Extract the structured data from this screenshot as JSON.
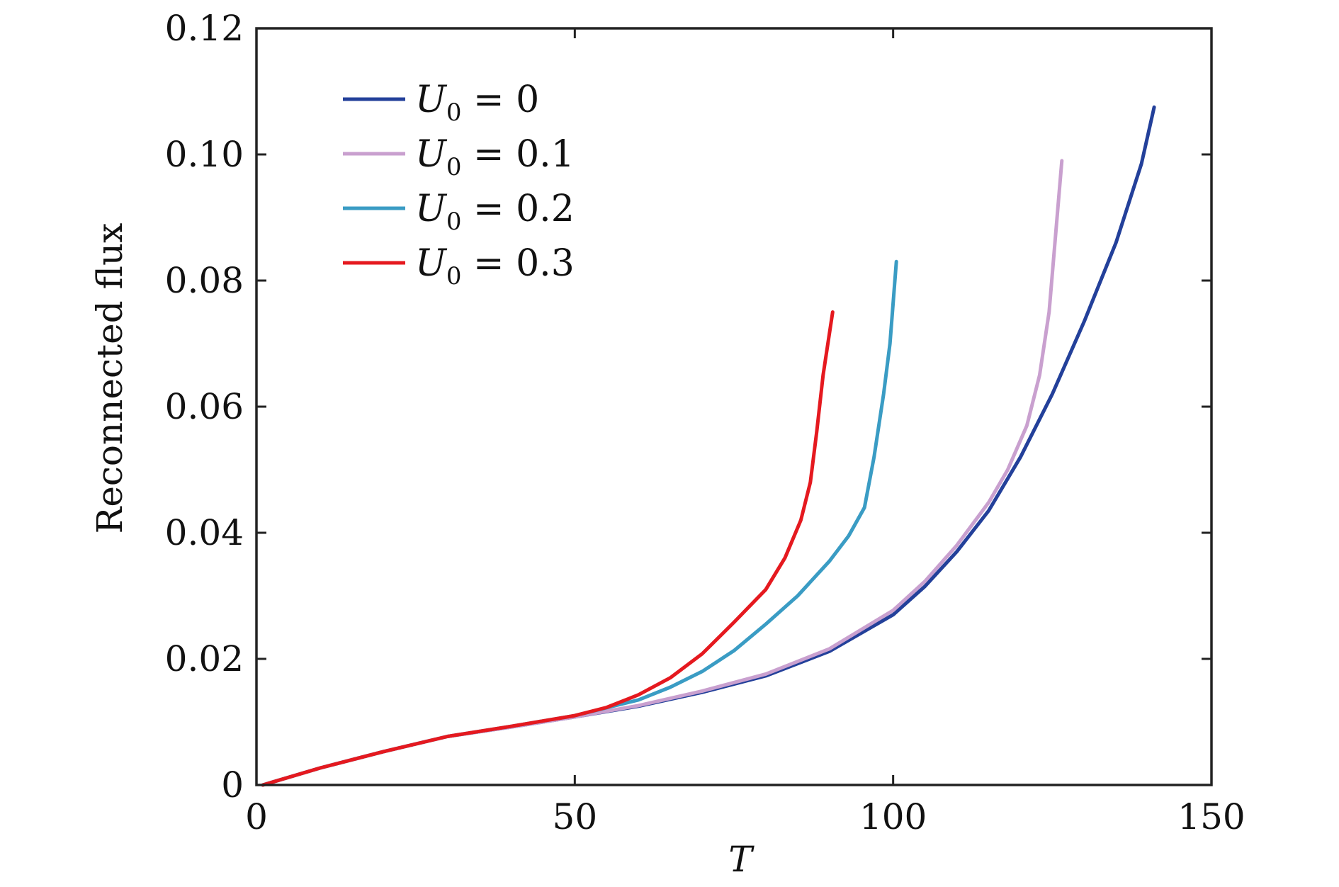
{
  "chart_data": {
    "type": "line",
    "title": "",
    "xlabel": "T",
    "ylabel": "Reconnected flux",
    "xlim": [
      0,
      150
    ],
    "ylim": [
      0,
      0.12
    ],
    "x_ticks": [
      0,
      50,
      100,
      150
    ],
    "x_tick_labels": [
      "0",
      "50",
      "100",
      "150"
    ],
    "y_ticks": [
      0,
      0.02,
      0.04,
      0.06,
      0.08,
      0.1,
      0.12
    ],
    "y_tick_labels": [
      "0",
      "0.02",
      "0.04",
      "0.06",
      "0.08",
      "0.10",
      "0.12"
    ],
    "grid": false,
    "legend_position": "top-left",
    "series": [
      {
        "name": "U0 = 0",
        "legend_symbol": "U",
        "legend_subscript": "0",
        "legend_rest": " = 0",
        "color": "#23409a",
        "points": [
          [
            1,
            0
          ],
          [
            10,
            0.0027
          ],
          [
            20,
            0.0053
          ],
          [
            30,
            0.0077
          ],
          [
            40,
            0.0092
          ],
          [
            50,
            0.0108
          ],
          [
            60,
            0.0125
          ],
          [
            70,
            0.0147
          ],
          [
            80,
            0.0173
          ],
          [
            90,
            0.0212
          ],
          [
            100,
            0.027
          ],
          [
            105,
            0.0315
          ],
          [
            110,
            0.037
          ],
          [
            115,
            0.0435
          ],
          [
            120,
            0.052
          ],
          [
            125,
            0.062
          ],
          [
            130,
            0.0735
          ],
          [
            135,
            0.086
          ],
          [
            139,
            0.0985
          ],
          [
            141,
            0.1075
          ]
        ]
      },
      {
        "name": "U0 = 0.1",
        "legend_symbol": "U",
        "legend_subscript": "0",
        "legend_rest": " = 0.1",
        "color": "#c9a0cf",
        "points": [
          [
            1,
            0
          ],
          [
            10,
            0.0027
          ],
          [
            20,
            0.0053
          ],
          [
            30,
            0.0077
          ],
          [
            40,
            0.0092
          ],
          [
            50,
            0.0108
          ],
          [
            60,
            0.0126
          ],
          [
            70,
            0.0149
          ],
          [
            80,
            0.0176
          ],
          [
            90,
            0.0216
          ],
          [
            100,
            0.0277
          ],
          [
            105,
            0.0323
          ],
          [
            110,
            0.038
          ],
          [
            115,
            0.0448
          ],
          [
            118,
            0.05
          ],
          [
            121,
            0.057
          ],
          [
            123,
            0.065
          ],
          [
            124.5,
            0.075
          ],
          [
            125.5,
            0.087
          ],
          [
            126.5,
            0.099
          ]
        ]
      },
      {
        "name": "U0 = 0.2",
        "legend_symbol": "U",
        "legend_subscript": "0",
        "legend_rest": " = 0.2",
        "color": "#3a9cc4",
        "points": [
          [
            1,
            0
          ],
          [
            10,
            0.0027
          ],
          [
            20,
            0.0053
          ],
          [
            30,
            0.0077
          ],
          [
            40,
            0.0093
          ],
          [
            50,
            0.011
          ],
          [
            60,
            0.0135
          ],
          [
            65,
            0.0155
          ],
          [
            70,
            0.018
          ],
          [
            75,
            0.0213
          ],
          [
            80,
            0.0255
          ],
          [
            85,
            0.03
          ],
          [
            90,
            0.0355
          ],
          [
            93,
            0.0395
          ],
          [
            95.5,
            0.044
          ],
          [
            97,
            0.052
          ],
          [
            98.5,
            0.062
          ],
          [
            99.5,
            0.07
          ],
          [
            100.5,
            0.083
          ]
        ]
      },
      {
        "name": "U0 = 0.3",
        "legend_symbol": "U",
        "legend_subscript": "0",
        "legend_rest": " = 0.3",
        "color": "#e5191f",
        "points": [
          [
            1,
            0
          ],
          [
            10,
            0.0027
          ],
          [
            20,
            0.0053
          ],
          [
            30,
            0.0077
          ],
          [
            40,
            0.0093
          ],
          [
            50,
            0.011
          ],
          [
            55,
            0.0123
          ],
          [
            60,
            0.0143
          ],
          [
            65,
            0.017
          ],
          [
            70,
            0.0208
          ],
          [
            75,
            0.0258
          ],
          [
            80,
            0.031
          ],
          [
            83,
            0.036
          ],
          [
            85.5,
            0.042
          ],
          [
            87,
            0.048
          ],
          [
            88,
            0.056
          ],
          [
            89,
            0.065
          ],
          [
            90.5,
            0.075
          ]
        ]
      }
    ]
  }
}
